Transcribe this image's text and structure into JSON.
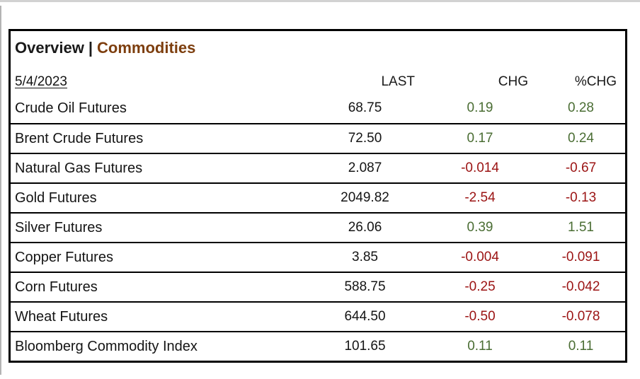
{
  "panel": {
    "title": {
      "primary": "Overview",
      "separator": "|",
      "secondary": "Commodities"
    },
    "date_link": "5/4/2023",
    "columns": {
      "last": "LAST",
      "chg": "CHG",
      "pchg": "%CHG"
    },
    "rows": [
      {
        "name": "Crude Oil Futures",
        "last": "68.75",
        "chg": "0.19",
        "pchg": "0.28",
        "direction": "up"
      },
      {
        "name": "Brent Crude Futures",
        "last": "72.50",
        "chg": "0.17",
        "pchg": "0.24",
        "direction": "up"
      },
      {
        "name": "Natural Gas Futures",
        "last": "2.087",
        "chg": "-0.014",
        "pchg": "-0.67",
        "direction": "down"
      },
      {
        "name": "Gold Futures",
        "last": "2049.82",
        "chg": "-2.54",
        "pchg": "-0.13",
        "direction": "down"
      },
      {
        "name": "Silver Futures",
        "last": "26.06",
        "chg": "0.39",
        "pchg": "1.51",
        "direction": "up"
      },
      {
        "name": "Copper Futures",
        "last": "3.85",
        "chg": "-0.004",
        "pchg": "-0.091",
        "direction": "down"
      },
      {
        "name": "Corn Futures",
        "last": "588.75",
        "chg": "-0.25",
        "pchg": "-0.042",
        "direction": "down"
      },
      {
        "name": "Wheat Futures",
        "last": "644.50",
        "chg": "-0.50",
        "pchg": "-0.078",
        "direction": "down"
      },
      {
        "name": "Bloomberg Commodity Index",
        "last": "101.65",
        "chg": "0.11",
        "pchg": "0.11",
        "direction": "up"
      }
    ],
    "colors": {
      "positive": "#4a6d33",
      "negative": "#9b1313",
      "accent": "#7d3e0e"
    }
  },
  "chart_data": {
    "type": "table",
    "title": "Overview | Commodities",
    "date": "5/4/2023",
    "columns": [
      "",
      "LAST",
      "CHG",
      "%CHG"
    ],
    "rows": [
      [
        "Crude Oil Futures",
        68.75,
        0.19,
        0.28
      ],
      [
        "Brent Crude Futures",
        72.5,
        0.17,
        0.24
      ],
      [
        "Natural Gas Futures",
        2.087,
        -0.014,
        -0.67
      ],
      [
        "Gold Futures",
        2049.82,
        -2.54,
        -0.13
      ],
      [
        "Silver Futures",
        26.06,
        0.39,
        1.51
      ],
      [
        "Copper Futures",
        3.85,
        -0.004,
        -0.091
      ],
      [
        "Corn Futures",
        588.75,
        -0.25,
        -0.042
      ],
      [
        "Wheat Futures",
        644.5,
        -0.5,
        -0.078
      ],
      [
        "Bloomberg Commodity Index",
        101.65,
        0.11,
        0.11
      ]
    ]
  }
}
